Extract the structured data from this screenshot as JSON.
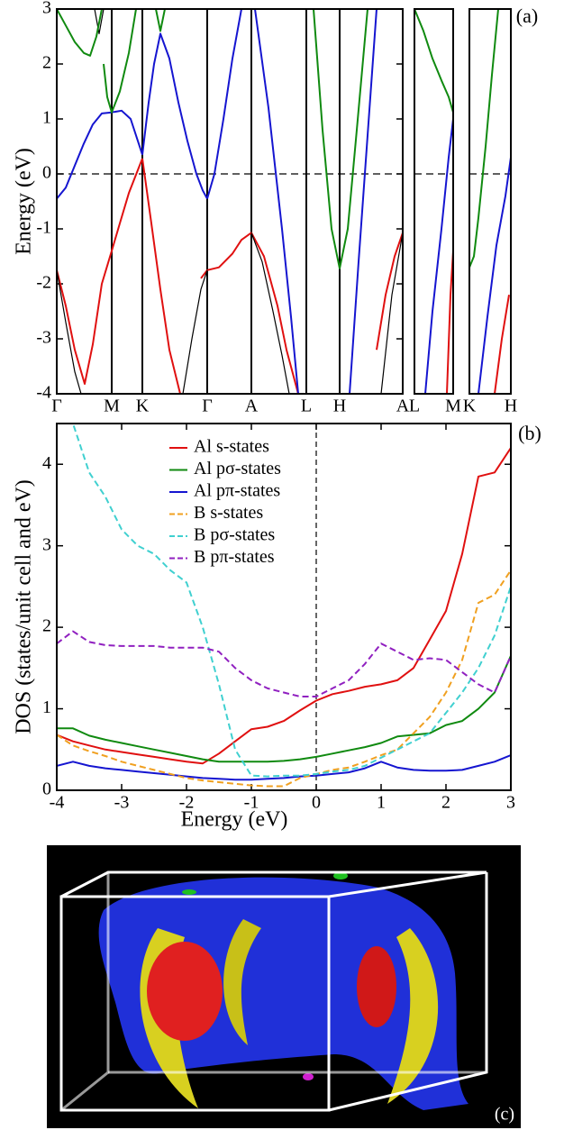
{
  "chart_data": [
    {
      "type": "line",
      "panel_label": "(a)",
      "y_label": "Energy (eV)",
      "xlim": [
        0,
        384
      ],
      "ylim": [
        -4,
        3
      ],
      "yticks": [
        3,
        2,
        1,
        0,
        -1,
        -2,
        -3,
        -4
      ],
      "xticks": [
        {
          "value": 0,
          "label": "Γ"
        },
        {
          "value": 61,
          "label": "M"
        },
        {
          "value": 95,
          "label": "K"
        },
        {
          "value": 167,
          "label": "Γ"
        },
        {
          "value": 216,
          "label": "A"
        },
        {
          "value": 277,
          "label": "L"
        },
        {
          "value": 314,
          "label": "H"
        },
        {
          "value": 384,
          "label": "A"
        }
      ],
      "hline": 0,
      "series": [
        {
          "color": "#e01010",
          "x": [
            0,
            10,
            20,
            31,
            40,
            50,
            61,
            70,
            80,
            95
          ],
          "values": [
            -1.75,
            -2.4,
            -3.2,
            -3.82,
            -3.1,
            -2.0,
            -1.4,
            -0.9,
            -0.35,
            0.28
          ]
        },
        {
          "color": "#e01010",
          "x": [
            95,
            105,
            115,
            125,
            137
          ],
          "values": [
            0.28,
            -0.9,
            -2.1,
            -3.2,
            -4.0
          ]
        },
        {
          "color": "#e01010",
          "x": [
            160,
            167,
            180,
            195,
            205,
            216,
            230,
            245,
            255,
            268
          ],
          "values": [
            -1.9,
            -1.75,
            -1.7,
            -1.45,
            -1.2,
            -1.07,
            -1.5,
            -2.4,
            -3.2,
            -4.0
          ]
        },
        {
          "color": "#e01010",
          "x": [
            355,
            365,
            375,
            384
          ],
          "values": [
            -3.2,
            -2.2,
            -1.5,
            -1.07
          ]
        },
        {
          "color": "#000000",
          "x": [
            0,
            10,
            20,
            27
          ],
          "values": [
            -1.75,
            -2.7,
            -3.6,
            -4.0
          ]
        },
        {
          "color": "#000000",
          "x": [
            42,
            47,
            52
          ],
          "values": [
            3,
            2.55,
            3
          ]
        },
        {
          "color": "#000000",
          "x": [
            140,
            150,
            160,
            167
          ],
          "values": [
            -4,
            -3.0,
            -2.1,
            -1.75
          ]
        },
        {
          "color": "#000000",
          "x": [
            216,
            228,
            240,
            250,
            258
          ],
          "values": [
            -1.07,
            -1.6,
            -2.5,
            -3.3,
            -4
          ]
        },
        {
          "color": "#000000",
          "x": [
            360,
            372,
            384
          ],
          "values": [
            -4,
            -2.2,
            -1.07
          ]
        },
        {
          "color": "#1515d0",
          "x": [
            0,
            10,
            20,
            30,
            40,
            50,
            61,
            72,
            82,
            90,
            95
          ],
          "values": [
            -0.45,
            -0.25,
            0.15,
            0.55,
            0.9,
            1.1,
            1.12,
            1.15,
            1.0,
            0.6,
            0.35
          ]
        },
        {
          "color": "#1515d0",
          "x": [
            95,
            102,
            108,
            115,
            125,
            135,
            145,
            155,
            162,
            167
          ],
          "values": [
            0.35,
            1.3,
            2.0,
            2.55,
            2.1,
            1.3,
            0.6,
            0.0,
            -0.3,
            -0.45
          ]
        },
        {
          "color": "#1515d0",
          "x": [
            167,
            175,
            185,
            195,
            205
          ],
          "values": [
            -0.45,
            0.0,
            1.0,
            2.1,
            3.0
          ]
        },
        {
          "color": "#1515d0",
          "x": [
            220,
            235,
            250,
            260,
            268
          ],
          "values": [
            3,
            1.2,
            -1.0,
            -2.6,
            -4.0
          ]
        },
        {
          "color": "#1515d0",
          "x": [
            325,
            335,
            345,
            355
          ],
          "values": [
            -4,
            -1.6,
            0.7,
            3
          ]
        },
        {
          "color": "#108a10",
          "x": [
            0,
            10,
            20,
            30,
            37,
            44,
            50
          ],
          "values": [
            3,
            2.7,
            2.4,
            2.2,
            2.15,
            2.5,
            3
          ]
        },
        {
          "color": "#108a10",
          "x": [
            52,
            56,
            61,
            70,
            80,
            88
          ],
          "values": [
            2.0,
            1.4,
            1.12,
            1.5,
            2.2,
            3
          ]
        },
        {
          "color": "#108a10",
          "x": [
            110,
            115,
            120
          ],
          "values": [
            3,
            2.6,
            3
          ]
        },
        {
          "color": "#108a10",
          "x": [
            285,
            295,
            305,
            314,
            323,
            333,
            345
          ],
          "values": [
            3,
            0.8,
            -1.0,
            -1.72,
            -1.0,
            0.8,
            3
          ]
        }
      ]
    },
    {
      "type": "line",
      "xlim": [
        0,
        43
      ],
      "ylim": [
        -4,
        3
      ],
      "xticks": [
        {
          "value": 0,
          "label": "L"
        },
        {
          "value": 43,
          "label": "M"
        }
      ],
      "hline": 0,
      "series": [
        {
          "color": "#108a10",
          "x": [
            0,
            10,
            20,
            30,
            38,
            43
          ],
          "values": [
            3,
            2.6,
            2.1,
            1.7,
            1.4,
            1.12
          ]
        },
        {
          "color": "#1515d0",
          "x": [
            12,
            20,
            30,
            38,
            43
          ],
          "values": [
            -4,
            -2.5,
            -1.0,
            0.3,
            1.0
          ]
        },
        {
          "color": "#e01010",
          "x": [
            36,
            40,
            43
          ],
          "values": [
            -4,
            -2.2,
            -1.4
          ]
        }
      ]
    },
    {
      "type": "line",
      "xlim": [
        0,
        46
      ],
      "ylim": [
        -4,
        3
      ],
      "xticks": [
        {
          "value": 0,
          "label": "K"
        },
        {
          "value": 46,
          "label": "H"
        }
      ],
      "hline": 0,
      "series": [
        {
          "color": "#108a10",
          "x": [
            0,
            5,
            10,
            18,
            25,
            32
          ],
          "values": [
            -1.7,
            -1.5,
            -0.8,
            0.5,
            1.8,
            3
          ]
        },
        {
          "color": "#1515d0",
          "x": [
            10,
            20,
            30,
            40,
            46
          ],
          "values": [
            -4,
            -2.6,
            -1.3,
            -0.4,
            0.3
          ]
        },
        {
          "color": "#e01010",
          "x": [
            28,
            36,
            44
          ],
          "values": [
            -4,
            -3.0,
            -2.2
          ]
        }
      ]
    },
    {
      "type": "line",
      "panel_label": "(b)",
      "x_label": "Energy (eV)",
      "y_label": "DOS (states/unit cell and eV)",
      "xlim": [
        -4,
        3
      ],
      "ylim": [
        0,
        4.5
      ],
      "xticks": [
        -4,
        -3,
        -2,
        -1,
        0,
        1,
        2,
        3
      ],
      "yticks": [
        0,
        1,
        2,
        3,
        4
      ],
      "vline": 0,
      "legend": "upper left",
      "x": [
        -4,
        -3.75,
        -3.5,
        -3.25,
        -3,
        -2.75,
        -2.5,
        -2.25,
        -2,
        -1.75,
        -1.5,
        -1.25,
        -1,
        -0.75,
        -0.5,
        -0.25,
        0,
        0.25,
        0.5,
        0.75,
        1,
        1.25,
        1.5,
        1.75,
        2,
        2.25,
        2.5,
        2.75,
        3
      ],
      "series": [
        {
          "name": "Al s-states",
          "color": "#e01010",
          "dashed": false,
          "values": [
            0.68,
            0.6,
            0.55,
            0.5,
            0.47,
            0.44,
            0.41,
            0.38,
            0.35,
            0.33,
            0.45,
            0.6,
            0.75,
            0.78,
            0.85,
            0.98,
            1.1,
            1.18,
            1.22,
            1.27,
            1.3,
            1.35,
            1.5,
            1.85,
            2.2,
            2.9,
            3.85,
            3.9,
            4.2
          ]
        },
        {
          "name": "Al pσ-states",
          "color": "#108a10",
          "dashed": false,
          "values": [
            0.76,
            0.76,
            0.67,
            0.62,
            0.58,
            0.54,
            0.5,
            0.46,
            0.42,
            0.38,
            0.35,
            0.35,
            0.35,
            0.35,
            0.36,
            0.38,
            0.41,
            0.45,
            0.49,
            0.53,
            0.58,
            0.66,
            0.68,
            0.7,
            0.8,
            0.85,
            1.0,
            1.2,
            1.65
          ]
        },
        {
          "name": "Al pπ-states",
          "color": "#1515d0",
          "dashed": false,
          "values": [
            0.3,
            0.35,
            0.3,
            0.27,
            0.25,
            0.23,
            0.21,
            0.19,
            0.17,
            0.15,
            0.14,
            0.13,
            0.13,
            0.14,
            0.15,
            0.17,
            0.18,
            0.2,
            0.22,
            0.27,
            0.35,
            0.28,
            0.25,
            0.24,
            0.24,
            0.25,
            0.3,
            0.35,
            0.43
          ]
        },
        {
          "name": "B s-states",
          "color": "#f0a020",
          "dashed": true,
          "values": [
            0.68,
            0.55,
            0.48,
            0.42,
            0.35,
            0.3,
            0.25,
            0.2,
            0.15,
            0.12,
            0.1,
            0.08,
            0.06,
            0.05,
            0.05,
            0.15,
            0.2,
            0.25,
            0.28,
            0.35,
            0.43,
            0.5,
            0.7,
            0.9,
            1.2,
            1.6,
            2.3,
            2.4,
            2.7
          ]
        },
        {
          "name": "B pσ-states",
          "color": "#40d0d0",
          "dashed": true,
          "values": [
            5.3,
            4.5,
            3.9,
            3.6,
            3.2,
            3.0,
            2.9,
            2.7,
            2.55,
            2.0,
            1.3,
            0.5,
            0.18,
            0.17,
            0.18,
            0.18,
            0.2,
            0.23,
            0.25,
            0.3,
            0.4,
            0.5,
            0.6,
            0.7,
            0.95,
            1.2,
            1.5,
            1.9,
            2.5
          ]
        },
        {
          "name": "B pπ-states",
          "color": "#9020c0",
          "dashed": true,
          "values": [
            1.8,
            1.95,
            1.82,
            1.78,
            1.77,
            1.77,
            1.77,
            1.75,
            1.75,
            1.75,
            1.7,
            1.5,
            1.35,
            1.25,
            1.2,
            1.15,
            1.15,
            1.25,
            1.35,
            1.55,
            1.8,
            1.7,
            1.6,
            1.62,
            1.6,
            1.45,
            1.3,
            1.2,
            1.65
          ]
        }
      ]
    }
  ],
  "fermi_surface": {
    "label": "(c)"
  }
}
